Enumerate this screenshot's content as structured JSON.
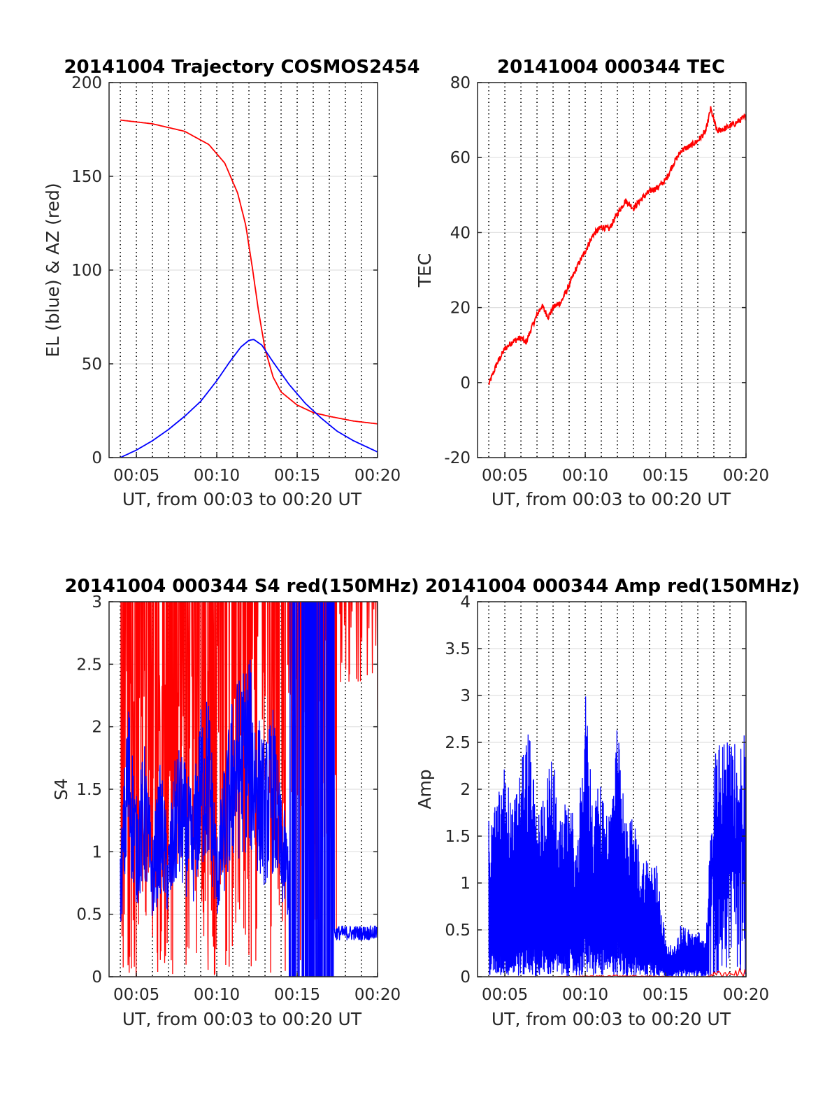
{
  "colors": {
    "red": "#ff0000",
    "blue": "#0000ff",
    "axis": "#262626",
    "grid": "#e0e0e0"
  },
  "chart_data": [
    {
      "id": "traj",
      "type": "line",
      "title": "20141004 Trajectory COSMOS2454",
      "xlabel": "UT, from 00:03 to 00:20 UT",
      "ylabel": "EL (blue) & AZ (red)",
      "xlim": [
        3.3,
        20
      ],
      "ylim": [
        0,
        200
      ],
      "yticks": [
        0,
        50,
        100,
        150,
        200
      ],
      "ytick_labels": [
        "0",
        "50",
        "100",
        "150",
        "200"
      ],
      "xticks": [
        5,
        10,
        15,
        20
      ],
      "xtick_labels": [
        "00:05",
        "00:10",
        "00:15",
        "00:20"
      ],
      "grid": "on, with dotted vertical minute lines",
      "series": [
        {
          "color": "red",
          "x": [
            4.0,
            6.0,
            8.0,
            9.5,
            10.5,
            11.3,
            11.8,
            12.2,
            12.6,
            13.0,
            13.5,
            14.0,
            15.0,
            16.0,
            17.0,
            18.5,
            20.0
          ],
          "values": [
            180,
            178,
            174,
            167,
            157,
            141,
            124,
            102,
            78,
            58,
            43,
            35,
            28,
            24,
            22,
            19.5,
            18
          ]
        },
        {
          "color": "blue",
          "x": [
            4.0,
            5.0,
            6.0,
            7.0,
            8.0,
            9.0,
            10.0,
            10.8,
            11.5,
            12.0,
            12.3,
            12.8,
            13.5,
            14.5,
            15.5,
            16.5,
            17.5,
            18.5,
            20.0
          ],
          "values": [
            0,
            4,
            9,
            15,
            22,
            30,
            41,
            51,
            59,
            62.5,
            63,
            60,
            51,
            39,
            29,
            21,
            14,
            9,
            3
          ]
        }
      ]
    },
    {
      "id": "tec",
      "type": "line",
      "title": "20141004 000344 TEC",
      "xlabel": "UT, from 00:03 to 00:20 UT",
      "ylabel": "TEC",
      "xlim": [
        3.3,
        20
      ],
      "ylim": [
        -20,
        80
      ],
      "yticks": [
        -20,
        0,
        20,
        40,
        60,
        80
      ],
      "ytick_labels": [
        "-20",
        "0",
        "20",
        "40",
        "60",
        "80"
      ],
      "xticks": [
        5,
        10,
        15,
        20
      ],
      "xtick_labels": [
        "00:05",
        "00:10",
        "00:15",
        "00:20"
      ],
      "grid": "on, with dotted vertical minute lines",
      "series": [
        {
          "color": "red",
          "x": [
            4.0,
            4.5,
            5.0,
            5.5,
            6.0,
            6.3,
            6.7,
            7.0,
            7.3,
            7.7,
            8.0,
            8.5,
            9.0,
            9.5,
            10.0,
            10.5,
            11.0,
            11.5,
            12.0,
            12.5,
            13.0,
            13.5,
            14.0,
            14.5,
            15.0,
            15.5,
            16.0,
            16.5,
            17.0,
            17.5,
            17.8,
            18.2,
            18.8,
            19.3,
            20.0
          ],
          "values": [
            -0.5,
            5,
            9,
            11,
            12,
            10.5,
            15,
            18,
            20.5,
            17.5,
            20,
            21.5,
            26,
            31,
            35,
            39.5,
            41.5,
            41,
            45,
            48.5,
            46.5,
            49,
            51,
            52,
            54,
            58.5,
            62,
            63,
            64.5,
            67,
            73,
            67,
            68,
            69,
            71
          ]
        }
      ]
    },
    {
      "id": "s4",
      "type": "line",
      "title": "20141004 000344 S4 red(150MHz)",
      "xlabel": "UT, from 00:03 to 00:20 UT",
      "ylabel": "S4",
      "xlim": [
        3.3,
        20
      ],
      "ylim": [
        0,
        3
      ],
      "yticks": [
        0,
        0.5,
        1,
        1.5,
        2,
        2.5,
        3
      ],
      "ytick_labels": [
        "0",
        "0.5",
        "1",
        "1.5",
        "2",
        "2.5",
        "3"
      ],
      "xticks": [
        5,
        10,
        15,
        20
      ],
      "xtick_labels": [
        "00:05",
        "00:10",
        "00:15",
        "00:20"
      ],
      "grid": "on, with dotted vertical minute lines",
      "series": [
        {
          "color": "red",
          "x": [
            4.0,
            5.0,
            6.0,
            7.0,
            8.0,
            9.0,
            10.0,
            10.5,
            11.0,
            12.0,
            12.5,
            13.0,
            14.0,
            15.0,
            16.0,
            17.0,
            17.5,
            18.0,
            19.0,
            20.0
          ],
          "values": [
            1.5,
            1.2,
            1.3,
            1.2,
            1.5,
            1.0,
            1.7,
            3.0,
            2.6,
            2.3,
            2.8,
            3.0,
            2.0,
            1.5,
            1.4,
            2.8,
            3.0,
            2.6,
            2.9,
            3.0
          ]
        },
        {
          "color": "blue",
          "x": [
            4.0,
            4.5,
            5.0,
            5.5,
            6.0,
            6.5,
            7.0,
            7.5,
            8.0,
            8.5,
            9.0,
            9.5,
            10.0,
            10.5,
            11.0,
            11.5,
            12.0,
            12.5,
            13.0,
            13.5,
            14.0,
            14.5,
            15.0,
            15.5,
            16.0,
            16.5,
            17.0,
            17.5,
            18.0,
            19.0,
            20.0
          ],
          "values": [
            0.7,
            1.6,
            1.0,
            1.3,
            0.8,
            1.2,
            0.8,
            1.3,
            1.2,
            1.0,
            1.5,
            1.6,
            0.8,
            1.2,
            1.6,
            1.7,
            1.8,
            1.5,
            1.3,
            1.5,
            1.0,
            0.8,
            1.5,
            1.6,
            2.0,
            1.6,
            1.5,
            0.4,
            0.35,
            0.35,
            0.4
          ]
        }
      ]
    },
    {
      "id": "amp",
      "type": "line",
      "title": "20141004 000344 Amp red(150MHz)",
      "xlabel": "UT, from 00:03 to 00:20 UT",
      "ylabel": "Amp",
      "xlim": [
        3.3,
        20
      ],
      "ylim": [
        0,
        4
      ],
      "yticks": [
        0,
        0.5,
        1,
        1.5,
        2,
        2.5,
        3,
        3.5,
        4
      ],
      "ytick_labels": [
        "0",
        "0.5",
        "1",
        "1.5",
        "2",
        "2.5",
        "3",
        "3.5",
        "4"
      ],
      "xticks": [
        5,
        10,
        15,
        20
      ],
      "xtick_labels": [
        "00:05",
        "00:10",
        "00:15",
        "00:20"
      ],
      "grid": "on, with dotted vertical minute lines",
      "series": [
        {
          "color": "blue",
          "x": [
            4.0,
            4.5,
            5.0,
            5.5,
            6.0,
            6.5,
            7.0,
            7.5,
            8.0,
            8.5,
            9.0,
            9.5,
            10.0,
            10.5,
            11.0,
            11.5,
            12.0,
            12.5,
            13.0,
            13.5,
            14.0,
            14.5,
            15.0,
            15.5,
            16.0,
            16.5,
            17.0,
            17.5,
            18.0,
            18.5,
            19.0,
            19.5,
            20.0
          ],
          "values": [
            1.7,
            1.9,
            2.3,
            1.8,
            2.4,
            2.7,
            1.7,
            2.1,
            2.4,
            1.6,
            2.1,
            1.3,
            3.1,
            1.9,
            2.1,
            1.8,
            2.7,
            1.7,
            1.7,
            1.3,
            1.3,
            1.2,
            0.4,
            0.3,
            0.6,
            0.5,
            0.5,
            0.4,
            2.4,
            2.5,
            2.6,
            2.5,
            2.6
          ]
        },
        {
          "color": "red",
          "x": [
            4.0,
            8.0,
            12.0,
            16.0,
            17.5,
            18.0,
            18.5,
            19.0,
            19.5,
            20.0
          ],
          "values": [
            0.0,
            0.0,
            0.02,
            0.0,
            0.0,
            0.05,
            0.08,
            0.06,
            0.09,
            0.08
          ]
        }
      ]
    }
  ]
}
